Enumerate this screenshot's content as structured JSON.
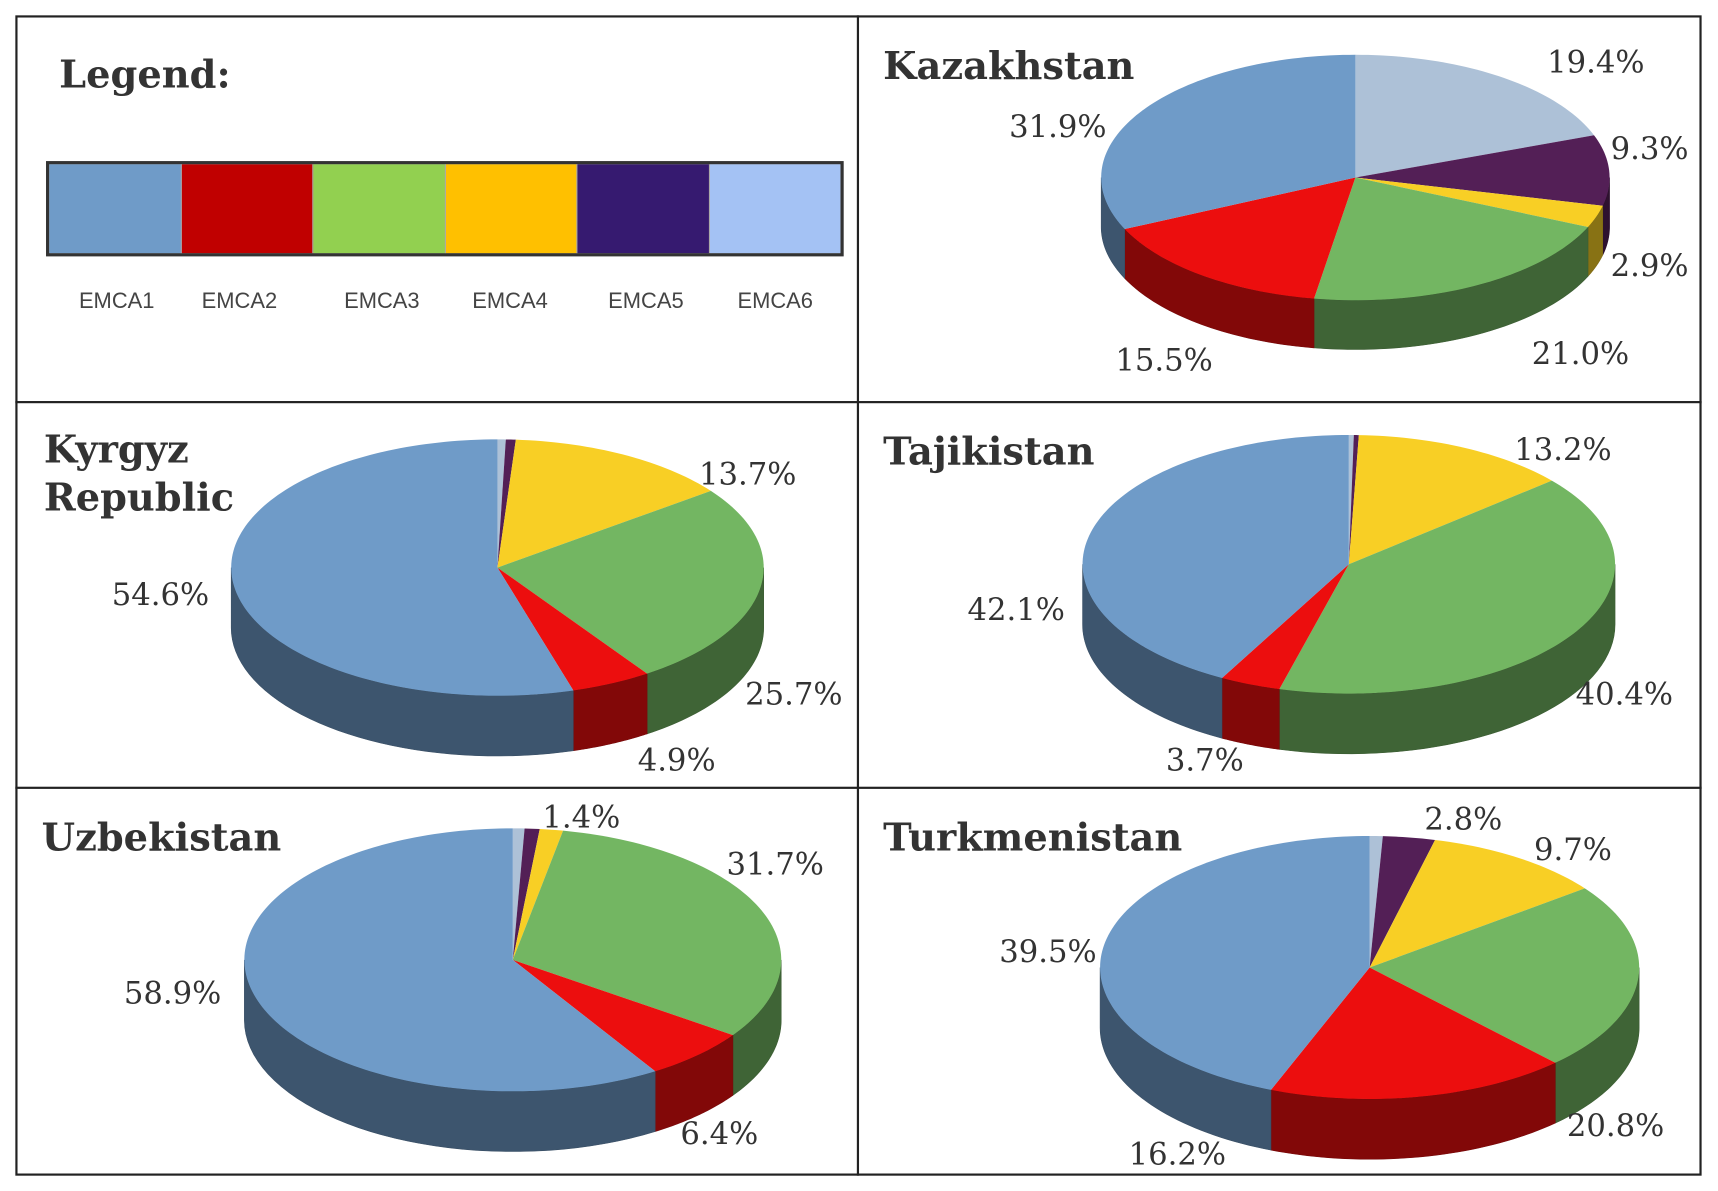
{
  "legend": {
    "title": "Legend:",
    "items": [
      {
        "name": "EMCA1",
        "color": "#6f9bc8"
      },
      {
        "name": "EMCA2",
        "color": "#c00000"
      },
      {
        "name": "EMCA3",
        "color": "#92d050"
      },
      {
        "name": "EMCA4",
        "color": "#ffc000"
      },
      {
        "name": "EMCA5",
        "color": "#361a70"
      },
      {
        "name": "EMCA6",
        "color": "#a4c2f4"
      }
    ]
  },
  "slice_colors": [
    "#6f9bc8",
    "#ec0e0e",
    "#73b662",
    "#f8cf25",
    "#531f56",
    "#adc1d7"
  ],
  "chart_data": [
    {
      "type": "pie",
      "style": "3d",
      "title": "Kazakhstan",
      "categories": [
        "EMCA1",
        "EMCA2",
        "EMCA3",
        "EMCA4",
        "EMCA5",
        "EMCA6"
      ],
      "values": [
        31.9,
        15.5,
        21.0,
        2.9,
        9.3,
        19.4
      ],
      "labels": [
        "31.9%",
        "15.5%",
        "21.0%",
        "2.9%",
        "9.3%",
        "19.4%"
      ]
    },
    {
      "type": "pie",
      "style": "3d",
      "title": "Kyrgyz Republic",
      "title_lines": [
        "Kyrgyz",
        "Republic"
      ],
      "categories": [
        "EMCA1",
        "EMCA2",
        "EMCA3",
        "EMCA4",
        "EMCA5",
        "EMCA6"
      ],
      "values": [
        54.6,
        4.9,
        25.7,
        13.7,
        0.6,
        0.5
      ],
      "labels": [
        "54.6%",
        "4.9%",
        "25.7%",
        "13.7%",
        null,
        null
      ]
    },
    {
      "type": "pie",
      "style": "3d",
      "title": "Tajikistan",
      "categories": [
        "EMCA1",
        "EMCA2",
        "EMCA3",
        "EMCA4",
        "EMCA5",
        "EMCA6"
      ],
      "values": [
        42.1,
        3.7,
        40.4,
        13.2,
        0.3,
        0.3
      ],
      "labels": [
        "42.1%",
        "3.7%",
        "40.4%",
        "13.2%",
        null,
        null
      ]
    },
    {
      "type": "pie",
      "style": "3d",
      "title": "Uzbekistan",
      "categories": [
        "EMCA1",
        "EMCA2",
        "EMCA3",
        "EMCA4",
        "EMCA5",
        "EMCA6"
      ],
      "values": [
        58.9,
        6.4,
        31.7,
        1.4,
        0.9,
        0.7
      ],
      "labels": [
        "58.9%",
        "6.4%",
        "31.7%",
        "1.4%",
        null,
        null
      ]
    },
    {
      "type": "pie",
      "style": "3d",
      "title": "Turkmenistan",
      "categories": [
        "EMCA1",
        "EMCA2",
        "EMCA3",
        "EMCA4",
        "EMCA5",
        "EMCA6"
      ],
      "values": [
        39.5,
        16.2,
        20.8,
        9.7,
        2.8,
        0.7
      ],
      "labels": [
        "39.5%",
        "16.2%",
        "20.8%",
        "9.7%",
        "2.8%",
        null
      ]
    }
  ]
}
